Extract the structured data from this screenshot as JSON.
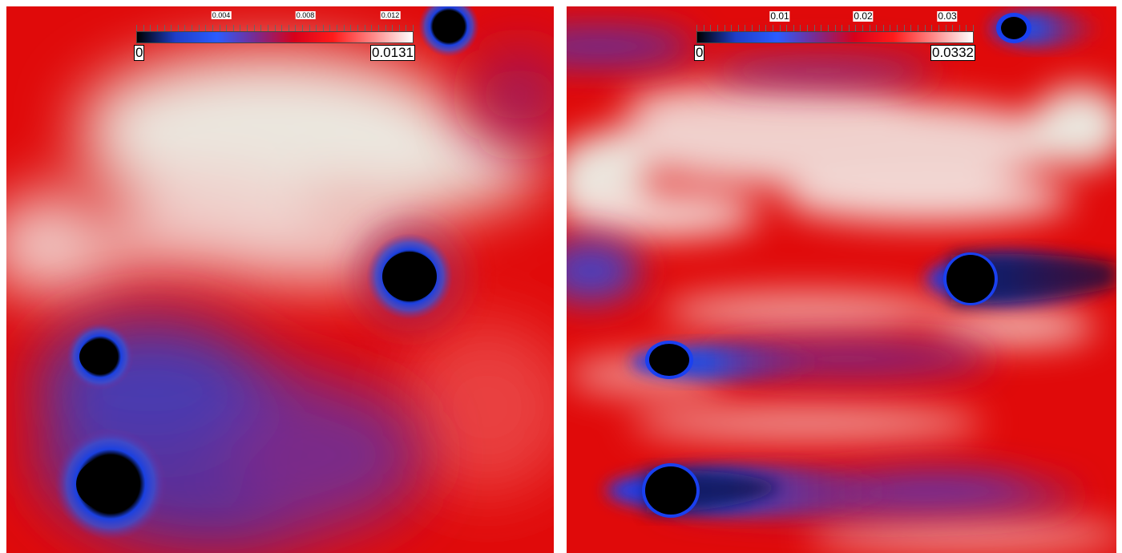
{
  "panels": [
    {
      "id": "left",
      "colorbar": {
        "min_label": "0",
        "max_label": "0.0131",
        "tick_labels": [
          "0.004",
          "0.008",
          "0.012"
        ],
        "tick_values": [
          0.004,
          0.008,
          0.012
        ],
        "max_value": 0.0131
      }
    },
    {
      "id": "right",
      "colorbar": {
        "min_label": "0",
        "max_label": "0.0332",
        "tick_labels": [
          "0.01",
          "0.02",
          "0.03"
        ],
        "tick_values": [
          0.01,
          0.02,
          0.03
        ],
        "max_value": 0.0332
      }
    }
  ],
  "colormap": {
    "stops": [
      "#000000",
      "#1e3ec8",
      "#2a5cff",
      "#7a2a90",
      "#d8001a",
      "#ff1a1a",
      "#ff8a8a",
      "#ffffff"
    ]
  },
  "colors": {
    "background_red": "#e40b0b",
    "light_region": "#e7e2d9",
    "obstacle": "#000000",
    "halo_blue": "#1f55ff",
    "wake_purple": "#6a2a8c"
  }
}
